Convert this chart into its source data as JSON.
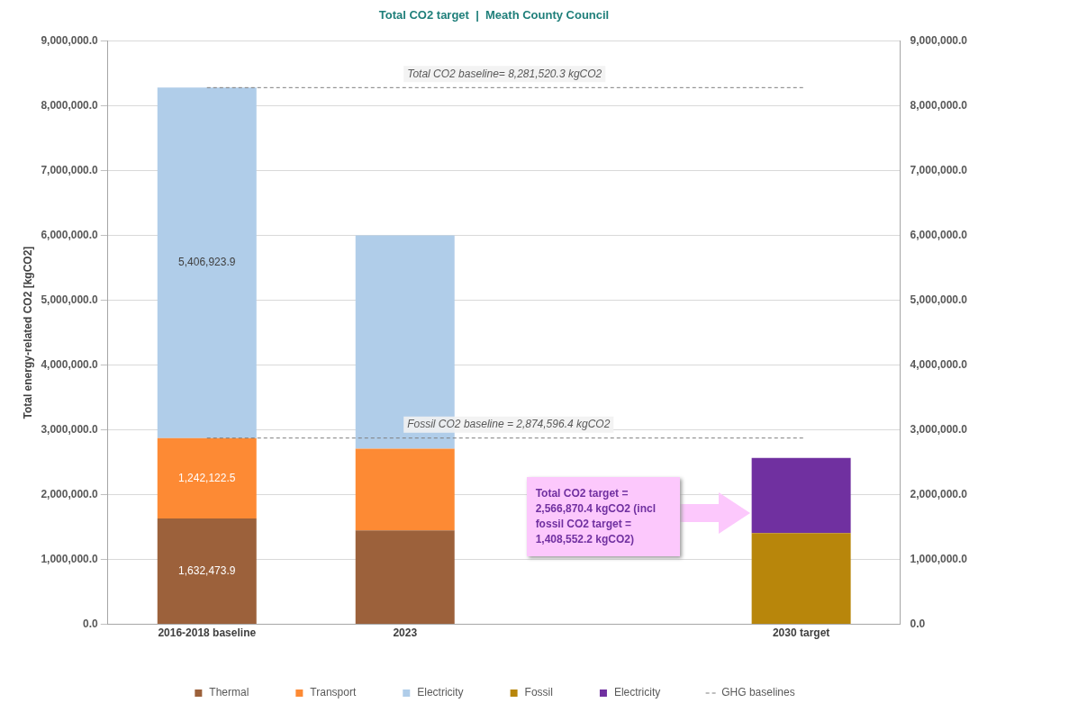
{
  "chart_data": {
    "type": "bar",
    "title": "Total CO2 target  |  Meath County Council",
    "ylabel": "Total energy-related CO2 [kgCO2]",
    "categories": [
      "2016-2018 baseline",
      "2023",
      null,
      "2030 target"
    ],
    "stacked": true,
    "series": [
      {
        "name": "Thermal",
        "color": "#9c613b",
        "values": [
          1632473.9,
          1450000,
          null,
          null
        ],
        "value_labels": [
          "1,632,473.9",
          null,
          null,
          null
        ]
      },
      {
        "name": "Transport",
        "color": "#fd8a34",
        "values": [
          1242122.5,
          1260000,
          null,
          null
        ],
        "value_labels": [
          "1,242,122.5",
          null,
          null,
          null
        ]
      },
      {
        "name": "Electricity",
        "color": "#b0cde9",
        "values": [
          5406923.9,
          3290000,
          null,
          null
        ],
        "value_labels": [
          "5,406,923.9",
          null,
          null,
          null
        ]
      },
      {
        "name": "Fossil",
        "color": "#b8860b",
        "values": [
          null,
          null,
          null,
          1408552.2
        ]
      },
      {
        "name": "Electricity",
        "color": "#7030a0",
        "values": [
          null,
          null,
          null,
          1158318.2
        ]
      }
    ],
    "ylim": [
      0,
      9000000
    ],
    "yticks": [
      {
        "value": 0,
        "label": "0.0"
      },
      {
        "value": 1000000,
        "label": "1,000,000.0"
      },
      {
        "value": 2000000,
        "label": "2,000,000.0"
      },
      {
        "value": 3000000,
        "label": "3,000,000.0"
      },
      {
        "value": 4000000,
        "label": "4,000,000.0"
      },
      {
        "value": 5000000,
        "label": "5,000,000.0"
      },
      {
        "value": 6000000,
        "label": "6,000,000.0"
      },
      {
        "value": 7000000,
        "label": "7,000,000.0"
      },
      {
        "value": 8000000,
        "label": "8,000,000.0"
      },
      {
        "value": 9000000,
        "label": "9,000,000.0"
      }
    ],
    "y2lim": [
      0,
      9000000
    ],
    "y2ticks": [
      {
        "value": 0,
        "label": "0.0"
      },
      {
        "value": 1000000,
        "label": "1,000,000.0"
      },
      {
        "value": 2000000,
        "label": "2,000,000.0"
      },
      {
        "value": 3000000,
        "label": "3,000,000.0"
      },
      {
        "value": 4000000,
        "label": "4,000,000.0"
      },
      {
        "value": 5000000,
        "label": "5,000,000.0"
      },
      {
        "value": 6000000,
        "label": "6,000,000.0"
      },
      {
        "value": 7000000,
        "label": "7,000,000.0"
      },
      {
        "value": 8000000,
        "label": "8,000,000.0"
      },
      {
        "value": 9000000,
        "label": "9,000,000.0"
      }
    ],
    "ref_lines": [
      {
        "axis": "y",
        "value": 8281520.3,
        "label": "Total CO2 baseline= 8,281,520.3 kgCO2",
        "color": "#7f7f7f",
        "line_style": "dashed"
      },
      {
        "axis": "y",
        "value": 2874596.4,
        "label": "Fossil CO2 baseline = 2,874,596.4 kgCO2",
        "color": "#7f7f7f",
        "line_style": "dashed"
      }
    ],
    "annotations": [
      "GHG baselines",
      "Total CO2 target = 2,566,870.4 kgCO2 (incl fossil CO2 target = 1,408,552.2 kgCO2)"
    ],
    "grid": "y",
    "legend": "bottom"
  }
}
